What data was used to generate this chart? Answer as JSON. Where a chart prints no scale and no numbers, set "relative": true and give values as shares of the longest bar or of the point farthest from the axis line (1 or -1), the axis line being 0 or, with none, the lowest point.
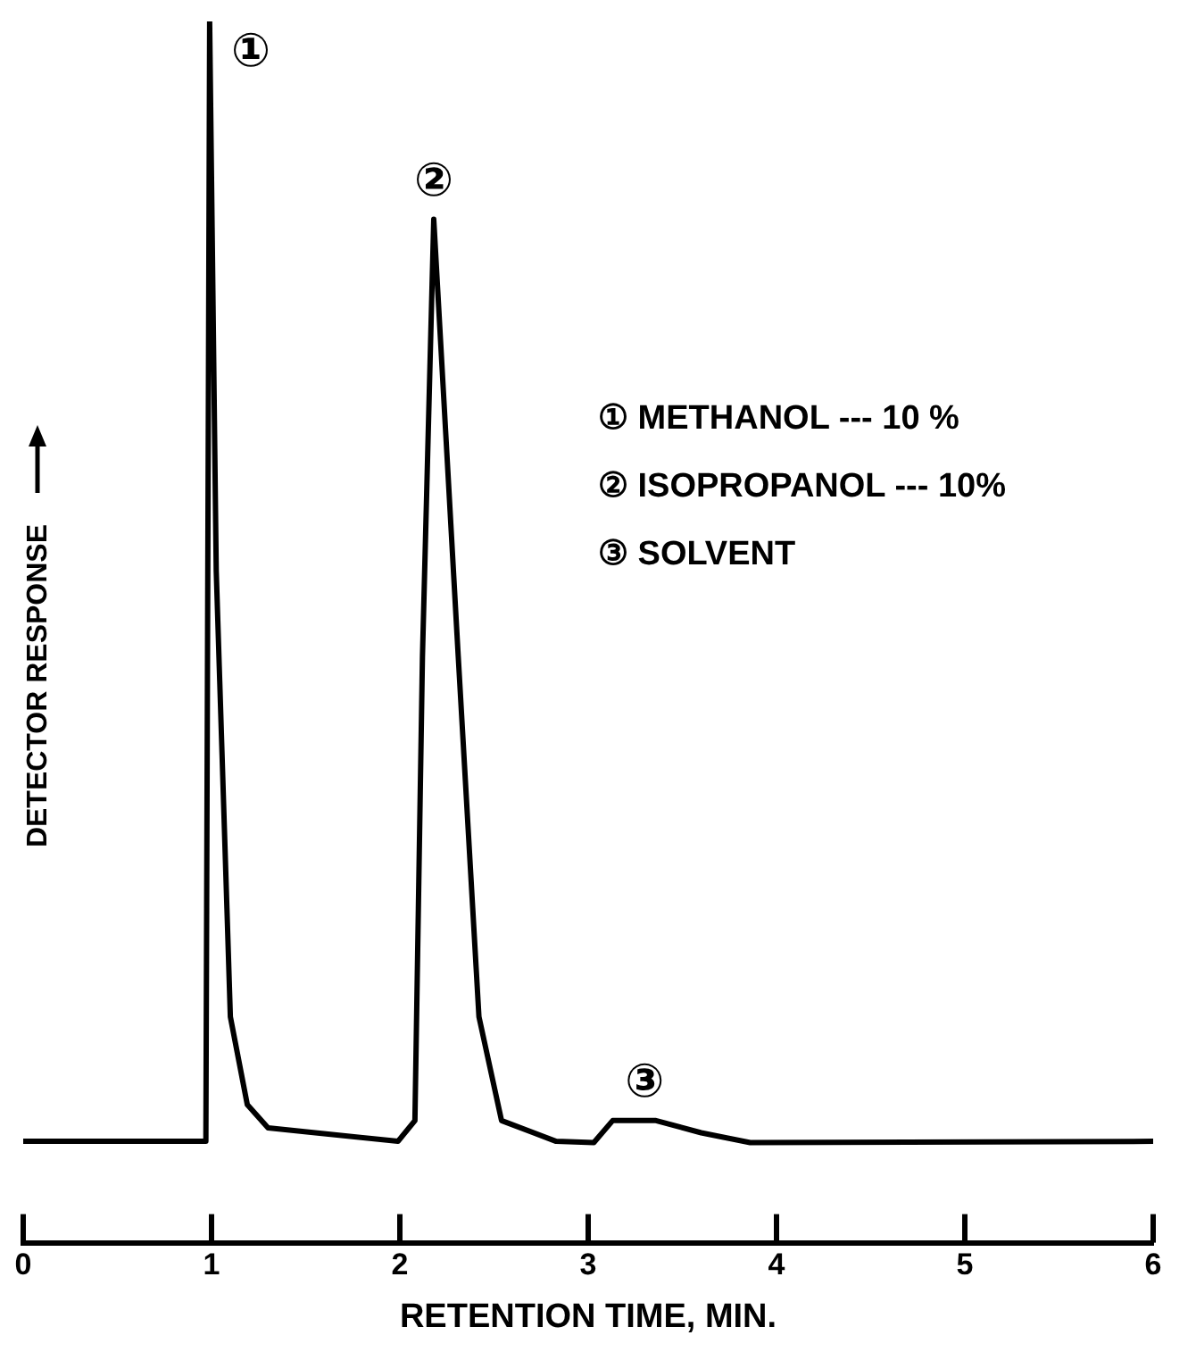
{
  "chart_data": {
    "type": "line",
    "relative": true,
    "xlabel": "RETENTION TIME, MIN.",
    "ylabel": "DETECTOR RESPONSE",
    "xlim": [
      0,
      6
    ],
    "xticks": [
      0,
      1,
      2,
      3,
      4,
      5,
      6
    ],
    "grid": false,
    "legend": false,
    "marker": "none",
    "line_style": "solid",
    "series": [
      {
        "color": "#000000",
        "x": [
          0,
          0.97,
          0.99,
          1.025,
          1.1,
          1.19,
          1.3,
          1.99,
          2.08,
          2.12,
          2.18,
          2.31,
          2.42,
          2.54,
          2.83,
          3.03,
          3.13,
          3.36,
          3.6,
          3.86,
          6
        ],
        "values": [
          0.083,
          0.083,
          1,
          0.55,
          0.185,
          0.113,
          0.094,
          0.083,
          0.1,
          0.48,
          0.838,
          0.48,
          0.185,
          0.1,
          0.083,
          0.082,
          0.1,
          0.1,
          0.09,
          0.082,
          0.083
        ]
      }
    ],
    "annotations": [
      {
        "text": "①",
        "x": 0.99,
        "y": 1
      },
      {
        "text": "②",
        "x": 2.18,
        "y": 0.838
      },
      {
        "text": "③",
        "x": 3.3,
        "y": 0.1
      },
      "① METHANOL --- 10 %",
      "② ISOPROPANOL --- 10%",
      "③ SOLVENT"
    ]
  }
}
